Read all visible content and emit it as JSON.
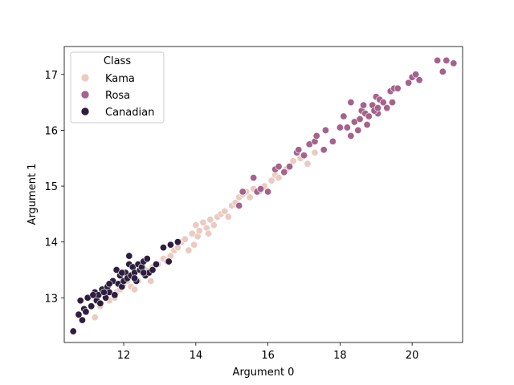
{
  "chart_data": {
    "type": "scatter",
    "xlabel": "Argument 0",
    "ylabel": "Argument 1",
    "xlim": [
      10.35,
      21.4
    ],
    "ylim": [
      12.2,
      17.5
    ],
    "xticks": [
      12,
      14,
      16,
      18,
      20
    ],
    "yticks": [
      13,
      14,
      15,
      16,
      17
    ],
    "grid": false,
    "legend": {
      "title": "Class",
      "placement": "top-left",
      "entries": [
        "Kama",
        "Rosa",
        "Canadian"
      ]
    },
    "colors": {
      "Kama": "#ebcbc1",
      "Rosa": "#a5628c",
      "Canadian": "#2d1e3e"
    },
    "series": [
      {
        "name": "Kama",
        "points": [
          [
            11.2,
            12.65
          ],
          [
            11.35,
            12.85
          ],
          [
            11.6,
            12.95
          ],
          [
            11.8,
            13.1
          ],
          [
            11.9,
            13.15
          ],
          [
            12.0,
            13.25
          ],
          [
            12.1,
            13.3
          ],
          [
            12.2,
            13.2
          ],
          [
            12.3,
            13.35
          ],
          [
            12.4,
            13.3
          ],
          [
            12.5,
            13.45
          ],
          [
            12.6,
            13.5
          ],
          [
            12.8,
            13.55
          ],
          [
            12.95,
            13.6
          ],
          [
            13.1,
            13.7
          ],
          [
            13.2,
            13.65
          ],
          [
            13.3,
            13.75
          ],
          [
            13.4,
            13.85
          ],
          [
            13.5,
            13.9
          ],
          [
            13.6,
            14.0
          ],
          [
            13.7,
            14.05
          ],
          [
            13.8,
            13.85
          ],
          [
            13.9,
            14.15
          ],
          [
            14.0,
            14.3
          ],
          [
            14.05,
            14.1
          ],
          [
            14.1,
            14.2
          ],
          [
            14.2,
            14.35
          ],
          [
            14.3,
            14.25
          ],
          [
            14.4,
            14.4
          ],
          [
            14.5,
            14.3
          ],
          [
            14.6,
            14.45
          ],
          [
            14.7,
            14.5
          ],
          [
            14.8,
            14.55
          ],
          [
            14.9,
            14.45
          ],
          [
            15.0,
            14.65
          ],
          [
            15.1,
            14.7
          ],
          [
            15.2,
            14.8
          ],
          [
            15.3,
            14.85
          ],
          [
            15.4,
            14.9
          ],
          [
            15.6,
            14.95
          ],
          [
            15.75,
            14.9
          ],
          [
            15.9,
            15.0
          ],
          [
            16.0,
            14.9
          ],
          [
            16.1,
            15.1
          ],
          [
            16.2,
            15.2
          ],
          [
            16.3,
            15.15
          ],
          [
            16.5,
            15.3
          ],
          [
            16.7,
            15.45
          ],
          [
            16.9,
            15.5
          ],
          [
            17.1,
            15.4
          ],
          [
            17.3,
            15.6
          ],
          [
            15.5,
            14.8
          ],
          [
            14.35,
            14.15
          ],
          [
            13.95,
            13.95
          ],
          [
            12.75,
            13.3
          ],
          [
            12.3,
            13.15
          ],
          [
            11.75,
            13.0
          ]
        ]
      },
      {
        "name": "Rosa",
        "points": [
          [
            15.2,
            14.65
          ],
          [
            15.3,
            14.9
          ],
          [
            15.6,
            15.15
          ],
          [
            15.7,
            14.9
          ],
          [
            15.8,
            14.95
          ],
          [
            16.0,
            14.9
          ],
          [
            16.2,
            15.3
          ],
          [
            16.3,
            15.35
          ],
          [
            16.45,
            15.25
          ],
          [
            16.6,
            15.35
          ],
          [
            16.8,
            15.6
          ],
          [
            16.85,
            15.65
          ],
          [
            17.0,
            15.55
          ],
          [
            17.15,
            15.75
          ],
          [
            17.3,
            15.8
          ],
          [
            17.35,
            15.9
          ],
          [
            17.55,
            15.65
          ],
          [
            17.6,
            16.0
          ],
          [
            17.8,
            15.8
          ],
          [
            18.0,
            16.05
          ],
          [
            18.1,
            16.25
          ],
          [
            18.2,
            16.05
          ],
          [
            18.3,
            16.5
          ],
          [
            18.4,
            16.15
          ],
          [
            18.5,
            16.0
          ],
          [
            18.55,
            16.2
          ],
          [
            18.6,
            16.35
          ],
          [
            18.7,
            16.3
          ],
          [
            18.75,
            16.1
          ],
          [
            18.8,
            16.25
          ],
          [
            18.9,
            16.45
          ],
          [
            19.0,
            16.6
          ],
          [
            19.05,
            16.3
          ],
          [
            19.1,
            16.55
          ],
          [
            19.2,
            16.5
          ],
          [
            19.3,
            16.4
          ],
          [
            19.4,
            16.7
          ],
          [
            19.5,
            16.75
          ],
          [
            19.45,
            16.5
          ],
          [
            19.6,
            16.75
          ],
          [
            19.9,
            16.85
          ],
          [
            20.0,
            16.95
          ],
          [
            20.1,
            17.0
          ],
          [
            20.2,
            16.9
          ],
          [
            20.7,
            17.25
          ],
          [
            20.85,
            17.05
          ],
          [
            20.95,
            17.25
          ],
          [
            21.15,
            17.2
          ],
          [
            18.3,
            15.9
          ],
          [
            18.95,
            16.35
          ],
          [
            18.65,
            16.45
          ],
          [
            19.05,
            16.4
          ]
        ]
      },
      {
        "name": "Canadian",
        "points": [
          [
            10.6,
            12.4
          ],
          [
            10.75,
            12.7
          ],
          [
            10.8,
            12.95
          ],
          [
            10.85,
            12.6
          ],
          [
            10.9,
            12.8
          ],
          [
            11.0,
            13.0
          ],
          [
            11.1,
            12.85
          ],
          [
            11.2,
            13.1
          ],
          [
            11.25,
            12.95
          ],
          [
            11.3,
            13.05
          ],
          [
            11.35,
            12.9
          ],
          [
            11.4,
            13.15
          ],
          [
            11.5,
            13.0
          ],
          [
            11.55,
            13.2
          ],
          [
            11.6,
            13.1
          ],
          [
            11.7,
            13.3
          ],
          [
            11.75,
            13.05
          ],
          [
            11.8,
            13.5
          ],
          [
            11.85,
            13.25
          ],
          [
            11.9,
            13.4
          ],
          [
            11.95,
            13.2
          ],
          [
            12.0,
            13.3
          ],
          [
            12.05,
            13.45
          ],
          [
            12.1,
            13.35
          ],
          [
            12.15,
            13.6
          ],
          [
            12.2,
            13.4
          ],
          [
            12.25,
            13.55
          ],
          [
            12.3,
            13.45
          ],
          [
            12.35,
            13.3
          ],
          [
            12.4,
            13.6
          ],
          [
            12.45,
            13.5
          ],
          [
            12.5,
            13.55
          ],
          [
            12.55,
            13.65
          ],
          [
            12.6,
            13.4
          ],
          [
            12.65,
            13.7
          ],
          [
            12.7,
            13.45
          ],
          [
            12.8,
            13.5
          ],
          [
            12.9,
            13.6
          ],
          [
            13.1,
            13.9
          ],
          [
            13.25,
            13.65
          ],
          [
            13.3,
            13.95
          ],
          [
            13.5,
            14.0
          ],
          [
            12.15,
            13.75
          ],
          [
            11.95,
            13.45
          ],
          [
            11.6,
            13.25
          ],
          [
            11.15,
            13.05
          ],
          [
            10.95,
            12.75
          ],
          [
            12.55,
            13.45
          ],
          [
            12.3,
            13.35
          ],
          [
            11.45,
            13.1
          ]
        ]
      }
    ]
  }
}
